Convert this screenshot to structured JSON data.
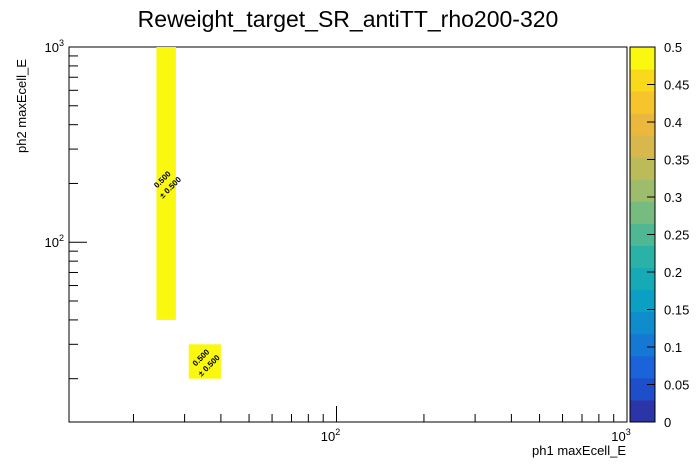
{
  "chart_data": {
    "type": "heatmap",
    "title": "Reweight_target_SR_antiTT_rho200-320",
    "xlabel": "ph1 maxEcell_E",
    "ylabel": "ph2 maxEcell_E",
    "x_scale": "log",
    "y_scale": "log",
    "xlim": [
      12,
      1000
    ],
    "ylim": [
      12,
      1000
    ],
    "x_tick_labels": [
      {
        "value": 100,
        "base": "10",
        "exp": "2"
      },
      {
        "value": 1000,
        "base": "10",
        "exp": "3"
      }
    ],
    "y_tick_labels": [
      {
        "value": 100,
        "base": "10",
        "exp": "2"
      },
      {
        "value": 1000,
        "base": "10",
        "exp": "3"
      }
    ],
    "grid": false,
    "colorbar": {
      "min": 0,
      "max": 0.5,
      "tick_values": [
        0,
        0.05,
        0.1,
        0.15,
        0.2,
        0.25,
        0.3,
        0.35,
        0.4,
        0.45,
        0.5
      ],
      "tick_labels": [
        "0",
        "0.05",
        "0.1",
        "0.15",
        "0.2",
        "0.25",
        "0.3",
        "0.35",
        "0.4",
        "0.45",
        "0.5"
      ],
      "colors": [
        "#2c35a8",
        "#1e4fca",
        "#1a63db",
        "#1478d4",
        "#0e8ccb",
        "#0c9fc4",
        "#16aab7",
        "#2ab2a6",
        "#4fb793",
        "#76bb80",
        "#9dbc6c",
        "#bcbb5a",
        "#d6b84c",
        "#eab83d",
        "#f6c42c",
        "#fad81c",
        "#f9f80e"
      ]
    },
    "cells": [
      {
        "x0": 24,
        "x1": 28,
        "y0": 40,
        "y1": 1000,
        "value": 0.5,
        "label": "0.500",
        "error_label": "± 0.500"
      },
      {
        "x0": 31,
        "x1": 40,
        "y0": 20,
        "y1": 30,
        "value": 0.5,
        "label": "0.500",
        "error_label": "± 0.500"
      }
    ]
  }
}
